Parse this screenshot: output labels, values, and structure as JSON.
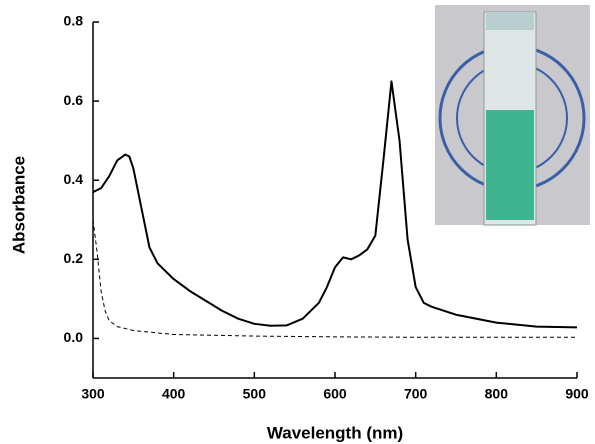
{
  "chart_data": {
    "type": "line",
    "x_label": "Wavelength (nm)",
    "y_label": "Absorbance",
    "xlim": [
      300,
      900
    ],
    "ylim": [
      -0.1,
      0.8
    ],
    "xticks": [
      300,
      400,
      500,
      600,
      700,
      800,
      900
    ],
    "yticks": [
      {
        "value": 0,
        "label": "0.0"
      },
      0.2,
      0.4,
      0.6,
      0.8
    ],
    "grid": false,
    "series": [
      {
        "color": "#000000",
        "style": "solid",
        "x": [
          300,
          310,
          320,
          330,
          340,
          345,
          350,
          360,
          370,
          380,
          400,
          420,
          440,
          460,
          480,
          500,
          520,
          540,
          560,
          580,
          590,
          600,
          610,
          620,
          630,
          640,
          650,
          660,
          670,
          680,
          690,
          700,
          710,
          720,
          750,
          800,
          850,
          900
        ],
        "values": [
          0.37,
          0.38,
          0.41,
          0.45,
          0.465,
          0.46,
          0.43,
          0.33,
          0.23,
          0.19,
          0.15,
          0.12,
          0.095,
          0.07,
          0.05,
          0.037,
          0.032,
          0.033,
          0.05,
          0.09,
          0.13,
          0.18,
          0.205,
          0.2,
          0.21,
          0.225,
          0.26,
          0.45,
          0.65,
          0.5,
          0.25,
          0.13,
          0.09,
          0.08,
          0.06,
          0.04,
          0.03,
          0.028
        ]
      },
      {
        "color": "#000000",
        "style": "dashed",
        "x": [
          300,
          305,
          310,
          315,
          320,
          330,
          350,
          400,
          500,
          600,
          700,
          900
        ],
        "values": [
          0.3,
          0.22,
          0.12,
          0.07,
          0.045,
          0.03,
          0.02,
          0.01,
          0.006,
          0.004,
          0.003,
          0.003
        ]
      }
    ]
  }
}
